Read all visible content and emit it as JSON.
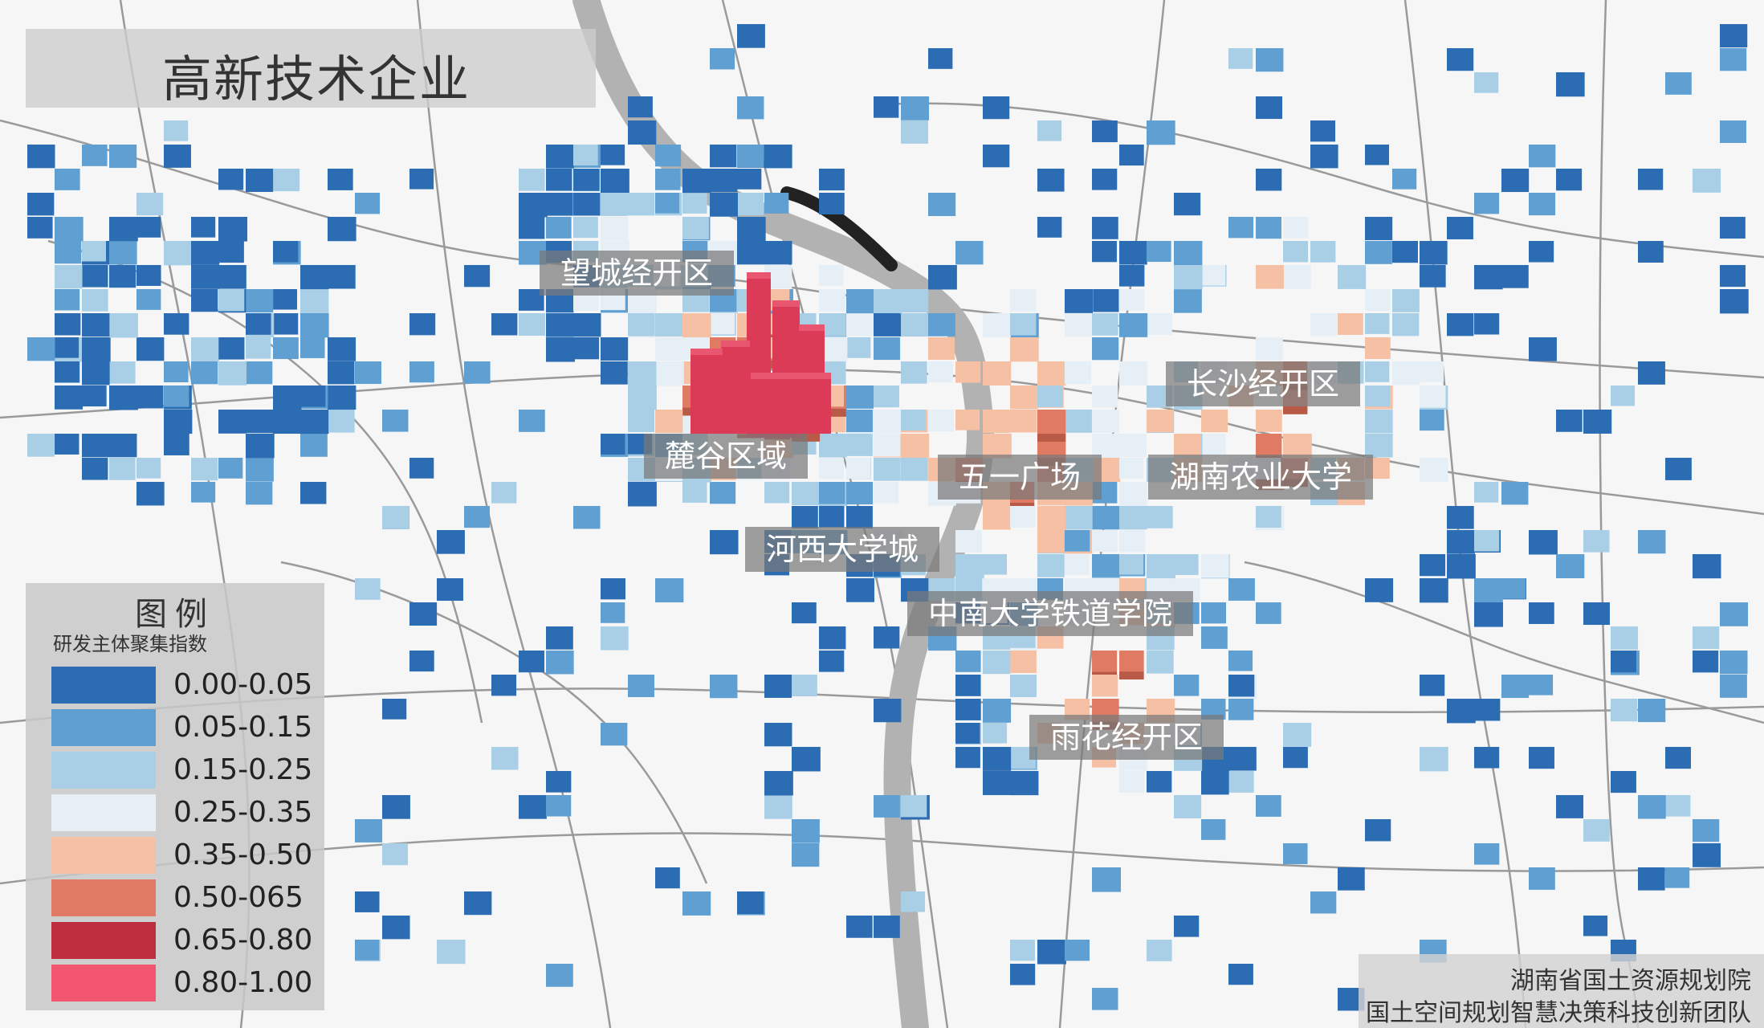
{
  "title": "高新技术企业",
  "districts": [
    {
      "key": "wangcheng",
      "label": "望城经开区"
    },
    {
      "key": "lugu",
      "label": "麓谷区域"
    },
    {
      "key": "changsha-jkq",
      "label": "长沙经开区"
    },
    {
      "key": "wuyi",
      "label": "五一广场"
    },
    {
      "key": "hunan-agri",
      "label": "湖南农业大学"
    },
    {
      "key": "hexi",
      "label": "河西大学城"
    },
    {
      "key": "csu-railway",
      "label": "中南大学铁道学院"
    },
    {
      "key": "yuhua",
      "label": "雨花经开区"
    }
  ],
  "legend": {
    "title": "图例",
    "subtitle": "研发主体聚集指数",
    "items": [
      {
        "label": "0.00-0.05",
        "color": "#2b6cb3"
      },
      {
        "label": "0.05-0.15",
        "color": "#5f9fd1"
      },
      {
        "label": "0.15-0.25",
        "color": "#a9cfe7"
      },
      {
        "label": "0.25-0.35",
        "color": "#e6eef6"
      },
      {
        "label": "0.35-0.50",
        "color": "#f5c0a4"
      },
      {
        "label": "0.50-065",
        "color": "#e07a62"
      },
      {
        "label": "0.65-0.80",
        "color": "#bd2f3f"
      },
      {
        "label": "0.80-1.00",
        "color": "#f2566e"
      }
    ]
  },
  "credits": {
    "line1": "湖南省国土资源规划院",
    "line2": "国土空间规划智慧决策科技创新团队"
  }
}
